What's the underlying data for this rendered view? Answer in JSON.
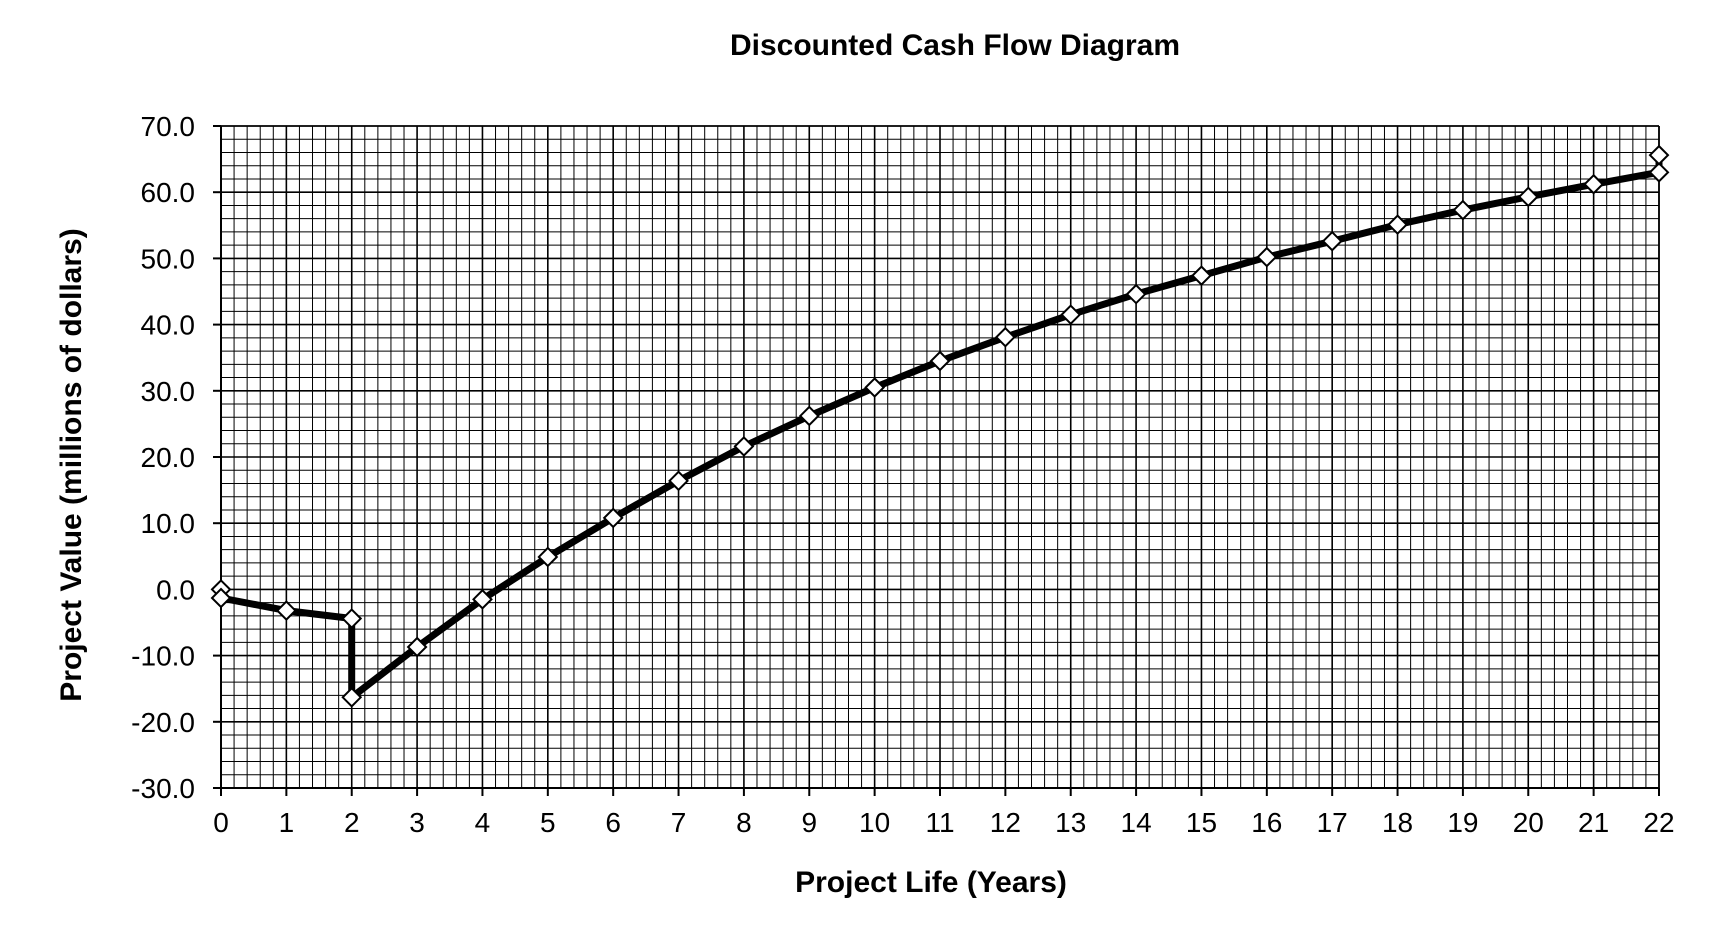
{
  "chart_data": {
    "type": "line",
    "title": "Discounted Cash Flow Diagram",
    "xlabel": "Project Life (Years)",
    "ylabel": "Project Value (millions of dollars)",
    "xlim": [
      0,
      22
    ],
    "ylim": [
      -30,
      70
    ],
    "x_ticks": [
      "0",
      "1",
      "2",
      "3",
      "4",
      "5",
      "6",
      "7",
      "8",
      "9",
      "10",
      "11",
      "12",
      "13",
      "14",
      "15",
      "16",
      "17",
      "18",
      "19",
      "20",
      "21",
      "22"
    ],
    "y_ticks": [
      "70.0",
      "60.0",
      "50.0",
      "40.0",
      "30.0",
      "20.0",
      "10.0",
      "0.0",
      "-10.0",
      "-20.0",
      "-30.0"
    ],
    "grid": true,
    "minor_grid_divisions": {
      "x": 5,
      "y": 5
    },
    "line_color": "#000000",
    "marker": "diamond",
    "marker_fill": "#ffffff",
    "series": [
      {
        "x": [
          0,
          0,
          1,
          2,
          2,
          3,
          4,
          5,
          6,
          7,
          8,
          9,
          10,
          11,
          12,
          13,
          14,
          15,
          16,
          17,
          18,
          19,
          20,
          21,
          22,
          22
        ],
        "y": [
          0.0,
          -1.3,
          -3.2,
          -4.4,
          -16.3,
          -8.7,
          -1.5,
          4.9,
          10.8,
          16.4,
          21.6,
          26.2,
          30.5,
          34.5,
          38.1,
          41.5,
          44.6,
          47.4,
          50.2,
          52.6,
          55.1,
          57.3,
          59.3,
          61.2,
          63.0,
          65.6
        ]
      }
    ]
  }
}
